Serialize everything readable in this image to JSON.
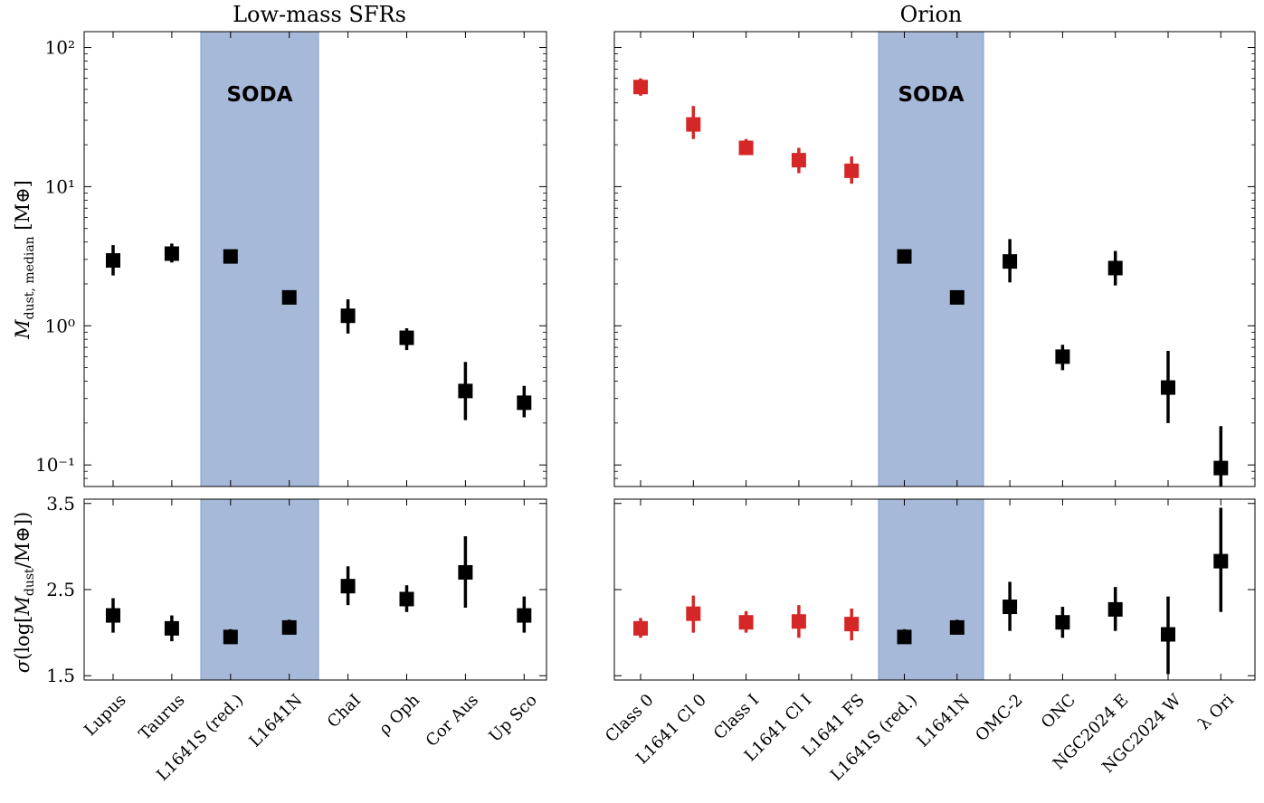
{
  "panels": {
    "left_title": "Low-mass SFRs",
    "right_title": "Orion",
    "shade_label": "SODA",
    "shade_color": "#a5b8d8",
    "top_ylabel": "M_{dust, median} [M⊕]",
    "bottom_ylabel": "σ(log[M_{dust}/M⊕])"
  },
  "chart_data": [
    {
      "type": "scatter",
      "panel": "left-top",
      "title": "Low-mass SFRs",
      "yscale": "log",
      "ylim": [
        0.07,
        130
      ],
      "yticks": [
        0.1,
        1,
        10,
        100
      ],
      "ytick_labels": [
        "10⁻¹",
        "10⁰",
        "10¹",
        "10²"
      ],
      "categories": [
        "Lupus",
        "Taurus",
        "L1641S (red.)",
        "L1641N",
        "ChaI",
        "ρ Oph",
        "Cor Aus",
        "Up Sco"
      ],
      "values": [
        2.95,
        3.3,
        3.15,
        1.6,
        1.18,
        0.82,
        0.34,
        0.28
      ],
      "err_low": [
        2.3,
        2.85,
        2.9,
        1.48,
        0.88,
        0.67,
        0.21,
        0.22
      ],
      "err_high": [
        3.8,
        3.9,
        3.45,
        1.72,
        1.55,
        0.96,
        0.55,
        0.37
      ],
      "colors": [
        "#000000",
        "#000000",
        "#000000",
        "#000000",
        "#000000",
        "#000000",
        "#000000",
        "#000000"
      ],
      "shaded_categories": [
        "L1641S (red.)",
        "L1641N"
      ]
    },
    {
      "type": "scatter",
      "panel": "left-bottom",
      "ylim": [
        1.45,
        3.55
      ],
      "yticks": [
        1.5,
        2.5,
        3.5
      ],
      "ytick_labels": [
        "1.5",
        "2.5",
        "3.5"
      ],
      "categories": [
        "Lupus",
        "Taurus",
        "L1641S (red.)",
        "L1641N",
        "ChaI",
        "ρ Oph",
        "Cor Aus",
        "Up Sco"
      ],
      "values": [
        2.2,
        2.05,
        1.95,
        2.06,
        2.54,
        2.39,
        2.7,
        2.2
      ],
      "err_low": [
        2.0,
        1.9,
        1.87,
        1.98,
        2.32,
        2.24,
        2.29,
        2.0
      ],
      "err_high": [
        2.4,
        2.2,
        2.04,
        2.15,
        2.77,
        2.55,
        3.12,
        2.42
      ],
      "colors": [
        "#000000",
        "#000000",
        "#000000",
        "#000000",
        "#000000",
        "#000000",
        "#000000",
        "#000000"
      ],
      "shaded_categories": [
        "L1641S (red.)",
        "L1641N"
      ]
    },
    {
      "type": "scatter",
      "panel": "right-top",
      "title": "Orion",
      "yscale": "log",
      "ylim": [
        0.07,
        130
      ],
      "yticks": [
        0.1,
        1,
        10,
        100
      ],
      "categories": [
        "Class 0",
        "L1641 Cl 0",
        "Class I",
        "L1641 Cl I",
        "L1641 FS",
        "L1641S (red.)",
        "L1641N",
        "OMC-2",
        "ONC",
        "NGC2024 E",
        "NGC2024 W",
        "λ Ori"
      ],
      "values": [
        52,
        28,
        19,
        15.5,
        13,
        3.15,
        1.6,
        2.9,
        0.6,
        2.6,
        0.36,
        0.095
      ],
      "err_low": [
        45,
        22,
        17,
        12.5,
        10.5,
        2.9,
        1.48,
        2.05,
        0.48,
        1.95,
        0.2,
        0.07
      ],
      "err_high": [
        60,
        38,
        22,
        19,
        16.5,
        3.45,
        1.72,
        4.2,
        0.73,
        3.45,
        0.66,
        0.19
      ],
      "colors": [
        "#d62728",
        "#d62728",
        "#d62728",
        "#d62728",
        "#d62728",
        "#000000",
        "#000000",
        "#000000",
        "#000000",
        "#000000",
        "#000000",
        "#000000"
      ],
      "shaded_categories": [
        "L1641S (red.)",
        "L1641N"
      ]
    },
    {
      "type": "scatter",
      "panel": "right-bottom",
      "ylim": [
        1.45,
        3.55
      ],
      "yticks": [
        1.5,
        2.5,
        3.5
      ],
      "categories": [
        "Class 0",
        "L1641 Cl 0",
        "Class I",
        "L1641 Cl I",
        "L1641 FS",
        "L1641S (red.)",
        "L1641N",
        "OMC-2",
        "ONC",
        "NGC2024 E",
        "NGC2024 W",
        "λ Ori"
      ],
      "values": [
        2.05,
        2.22,
        2.12,
        2.13,
        2.1,
        1.95,
        2.06,
        2.3,
        2.12,
        2.27,
        1.98,
        2.83
      ],
      "err_low": [
        1.94,
        2.0,
        2.0,
        1.94,
        1.91,
        1.87,
        1.98,
        2.02,
        1.94,
        2.02,
        1.52,
        2.24
      ],
      "err_high": [
        2.17,
        2.43,
        2.25,
        2.32,
        2.28,
        2.04,
        2.15,
        2.59,
        2.3,
        2.53,
        2.42,
        3.45
      ],
      "colors": [
        "#d62728",
        "#d62728",
        "#d62728",
        "#d62728",
        "#d62728",
        "#000000",
        "#000000",
        "#000000",
        "#000000",
        "#000000",
        "#000000",
        "#000000"
      ],
      "shaded_categories": [
        "L1641S (red.)",
        "L1641N"
      ]
    }
  ]
}
